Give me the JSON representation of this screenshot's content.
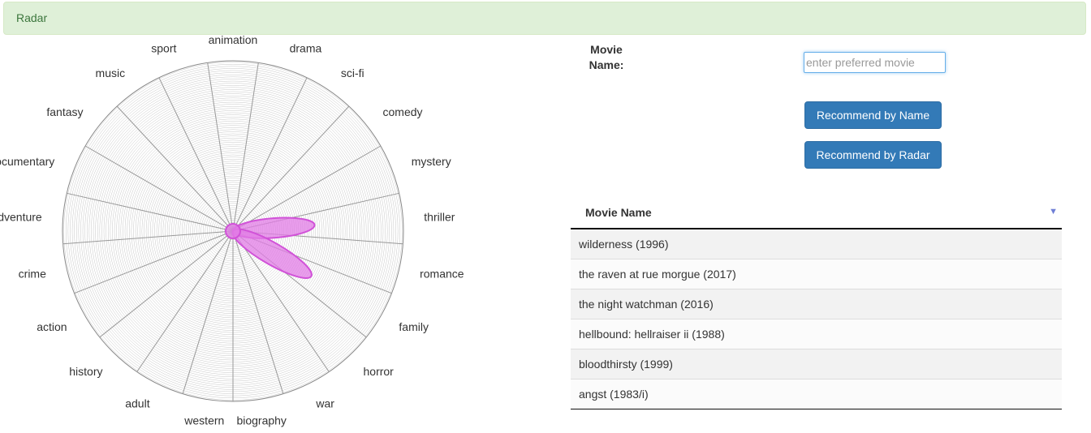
{
  "header": {
    "title": "Radar"
  },
  "radar": {
    "categories": [
      "animation",
      "drama",
      "sci-fi",
      "comedy",
      "mystery",
      "thriller",
      "romance",
      "family",
      "horror",
      "war",
      "biography",
      "western",
      "adult",
      "history",
      "action",
      "crime",
      "adventure",
      "documentary",
      "fantasy",
      "music",
      "sport"
    ],
    "selected": [
      {
        "category": "thriller",
        "level": 0.48
      },
      {
        "category": "family",
        "level": 0.53
      }
    ],
    "colors": {
      "grid": "#aaaaaa",
      "spoke": "#999999",
      "petal_fill": "#e27ce6",
      "petal_stroke": "#d152d8"
    }
  },
  "form": {
    "label": "Movie Name:",
    "input_value": "",
    "input_placeholder": "enter preferred movie",
    "recommend_by_name": "Recommend by Name",
    "recommend_by_radar": "Recommend by Radar"
  },
  "table": {
    "header": "Movie Name",
    "sort_icon": "sort-desc-icon",
    "rows": [
      "wilderness (1996)",
      "the raven at rue morgue (2017)",
      "the night watchman (2016)",
      "hellbound: hellraiser ii (1988)",
      "bloodthirsty (1999)",
      "angst (1983/i)"
    ]
  },
  "colors": {
    "alert_bg": "#dff0d8",
    "alert_text": "#3c763d",
    "button_bg": "#337ab7"
  }
}
